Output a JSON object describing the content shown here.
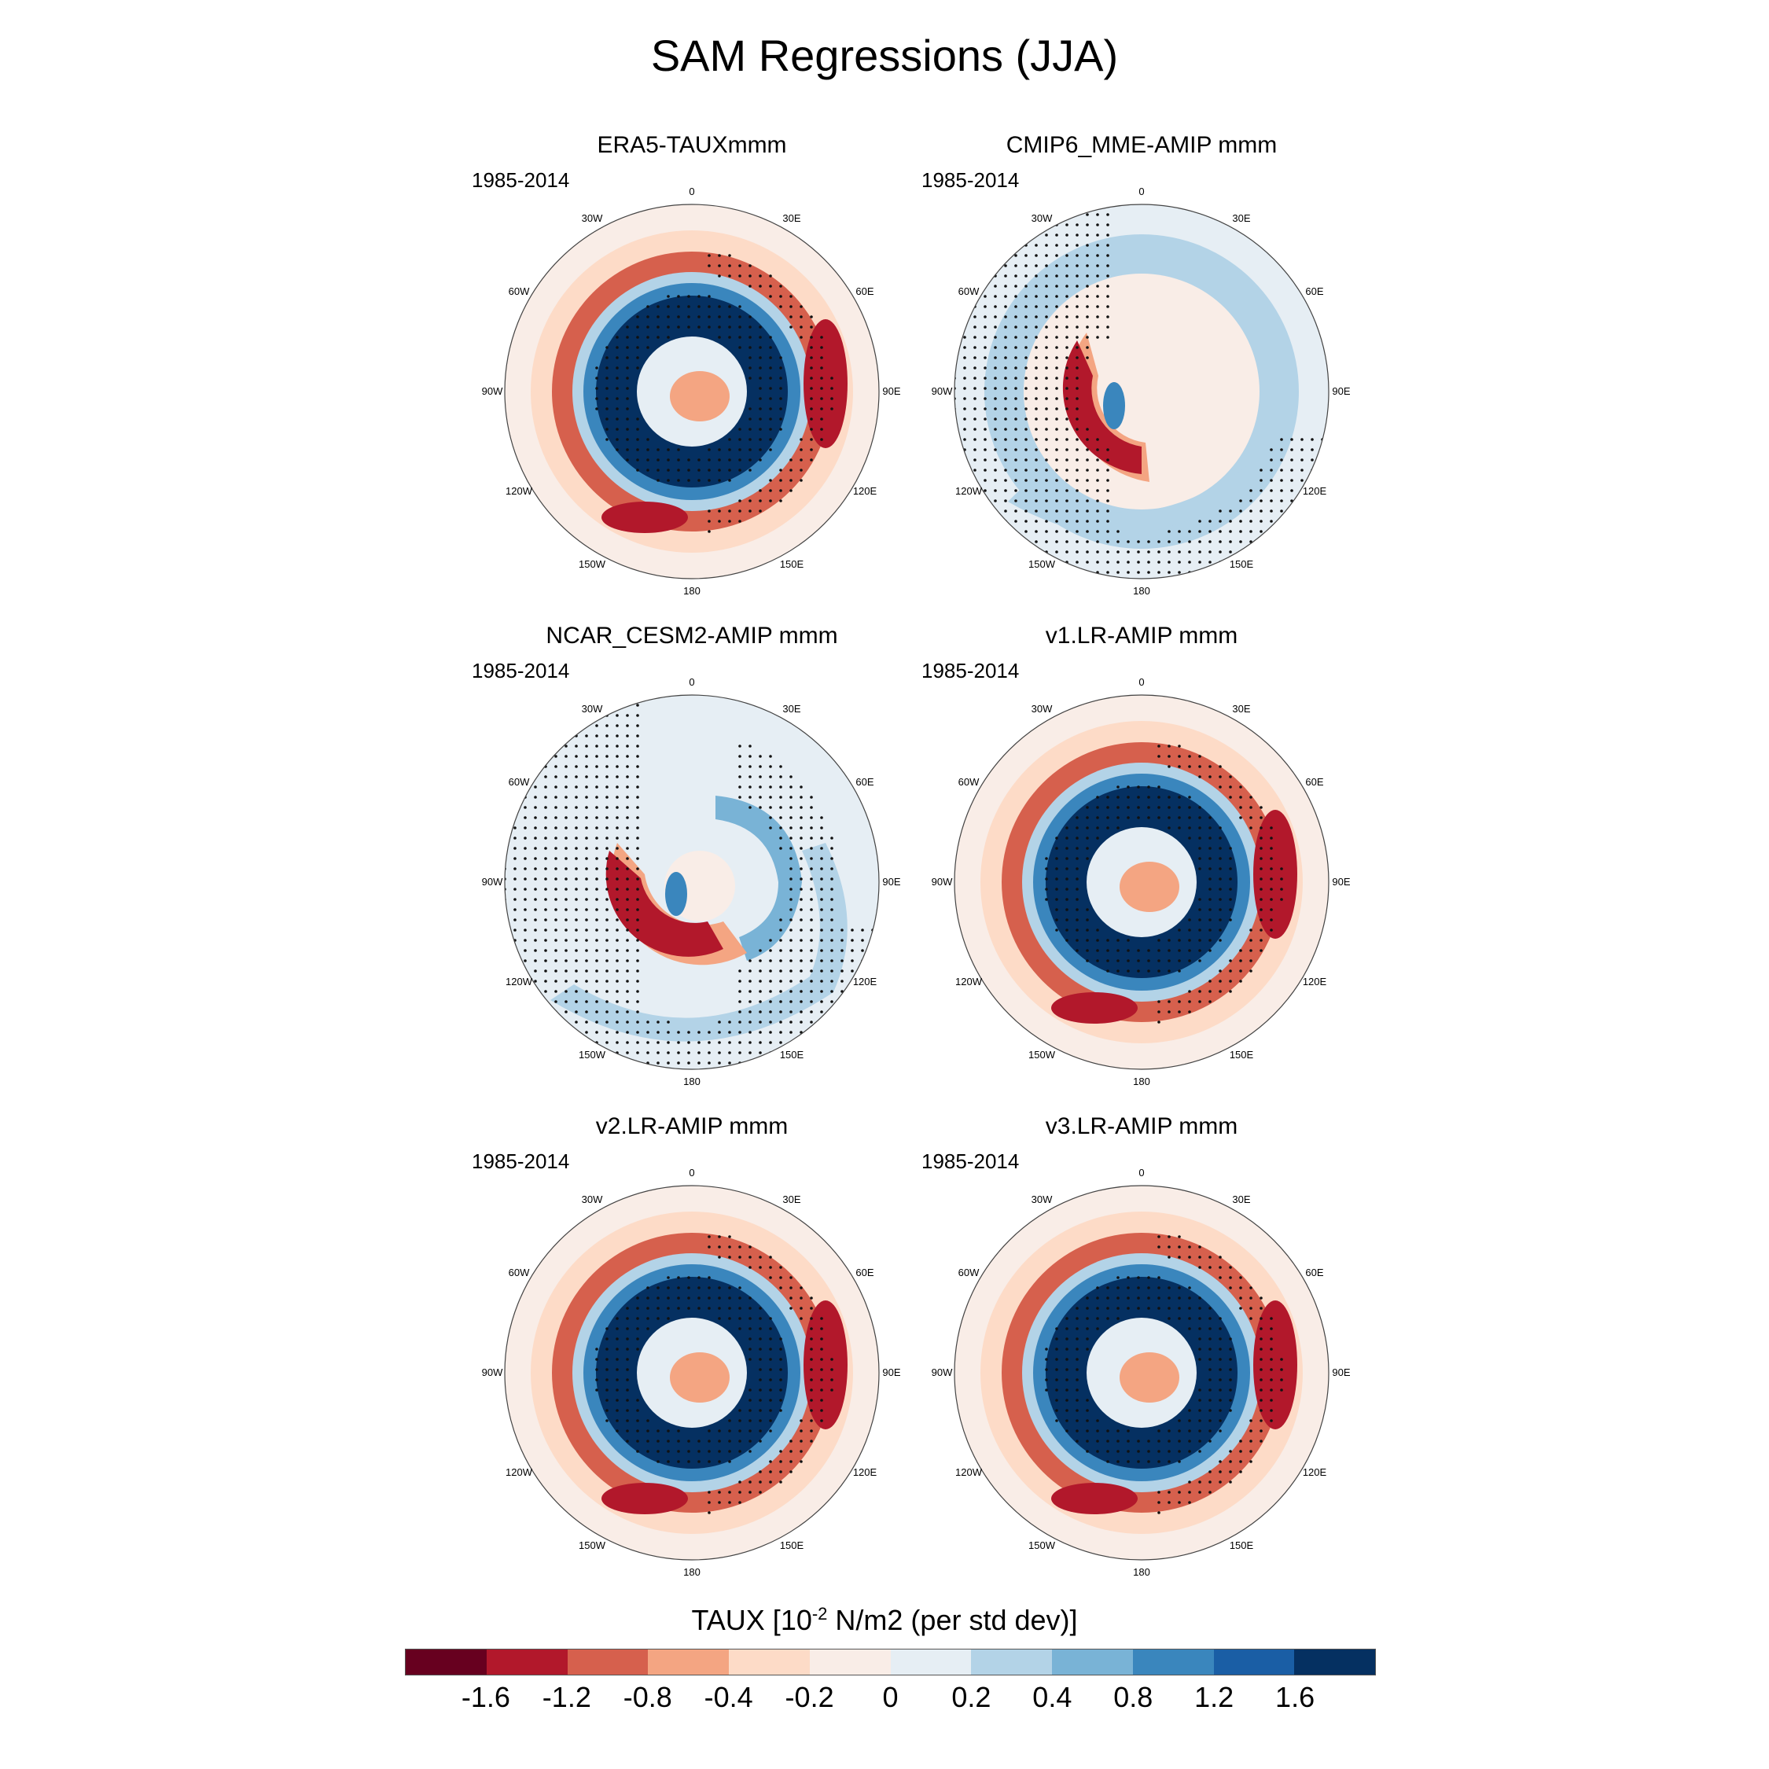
{
  "figure": {
    "title": "SAM Regressions (JJA)",
    "colorbar": {
      "title_prefix": "TAUX [10",
      "title_exp": "-2",
      "title_suffix": " N/m2 (per std dev)]",
      "colors": [
        "#67001f",
        "#b2182b",
        "#d6604d",
        "#f4a582",
        "#fddbc7",
        "#f9ede7",
        "#e6eef4",
        "#b3d3e7",
        "#79b3d6",
        "#3a86bd",
        "#1a5ea5",
        "#053061"
      ],
      "labels": [
        "-1.6",
        "-1.2",
        "-0.8",
        "-0.4",
        "-0.2",
        "0",
        "0.2",
        "0.4",
        "0.8",
        "1.2",
        "1.6"
      ]
    },
    "longitude_labels": [
      "0",
      "30E",
      "60E",
      "90E",
      "120E",
      "150E",
      "180",
      "150W",
      "120W",
      "90W",
      "60W",
      "30W"
    ],
    "panels": [
      {
        "title": "ERA5-TAUXmmm",
        "period": "1985-2014",
        "pattern": "ring"
      },
      {
        "title": "CMIP6_MME-AMIP  mmm",
        "period": "1985-2014",
        "pattern": "sector"
      },
      {
        "title": "NCAR_CESM2-AMIP  mmm",
        "period": "1985-2014",
        "pattern": "spiral"
      },
      {
        "title": "v1.LR-AMIP  mmm",
        "period": "1985-2014",
        "pattern": "ring"
      },
      {
        "title": "v2.LR-AMIP  mmm",
        "period": "1985-2014",
        "pattern": "ring"
      },
      {
        "title": "v3.LR-AMIP  mmm",
        "period": "1985-2014",
        "pattern": "ring"
      }
    ]
  }
}
